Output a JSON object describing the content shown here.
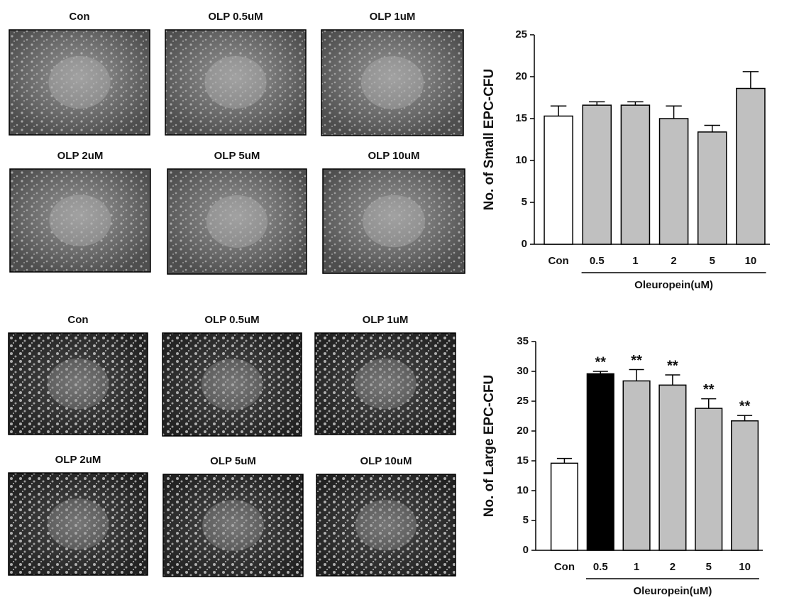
{
  "chart_data": [
    {
      "type": "bar",
      "ylabel": "No. of Small EPC-CFU",
      "xlabel": "Oleuropein(uM)",
      "categories": [
        "Con",
        "0.5",
        "1",
        "2",
        "5",
        "10"
      ],
      "values": [
        15.3,
        16.6,
        16.6,
        15.0,
        13.4,
        18.6
      ],
      "errors": [
        1.2,
        0.4,
        0.4,
        1.5,
        0.8,
        2.0
      ],
      "colors": [
        "#ffffff",
        "#c0c0c0",
        "#c0c0c0",
        "#c0c0c0",
        "#c0c0c0",
        "#c0c0c0"
      ],
      "ylim": [
        0,
        25
      ],
      "yticks": [
        0,
        5,
        10,
        15,
        20,
        25
      ]
    },
    {
      "type": "bar",
      "ylabel": "No. of Large EPC-CFU",
      "xlabel": "Oleuropein(uM)",
      "categories": [
        "Con",
        "0.5",
        "1",
        "2",
        "5",
        "10"
      ],
      "values": [
        14.6,
        29.6,
        28.4,
        27.7,
        23.8,
        21.7
      ],
      "errors": [
        0.8,
        0.4,
        1.9,
        1.7,
        1.6,
        0.9
      ],
      "significance": [
        null,
        "**",
        "**",
        "**",
        "**",
        "**"
      ],
      "colors": [
        "#ffffff",
        "#000000",
        "#c0c0c0",
        "#c0c0c0",
        "#c0c0c0",
        "#c0c0c0"
      ],
      "ylim": [
        0,
        35
      ],
      "yticks": [
        0,
        5,
        10,
        15,
        20,
        25,
        30,
        35
      ]
    }
  ],
  "micrographs": {
    "small": [
      "Con",
      "OLP 0.5uM",
      "OLP 1uM",
      "OLP 2uM",
      "OLP 5uM",
      "OLP 10uM"
    ],
    "large": [
      "Con",
      "OLP 0.5uM",
      "OLP 1uM",
      "OLP 2uM",
      "OLP 5uM",
      "OLP 10uM"
    ]
  }
}
